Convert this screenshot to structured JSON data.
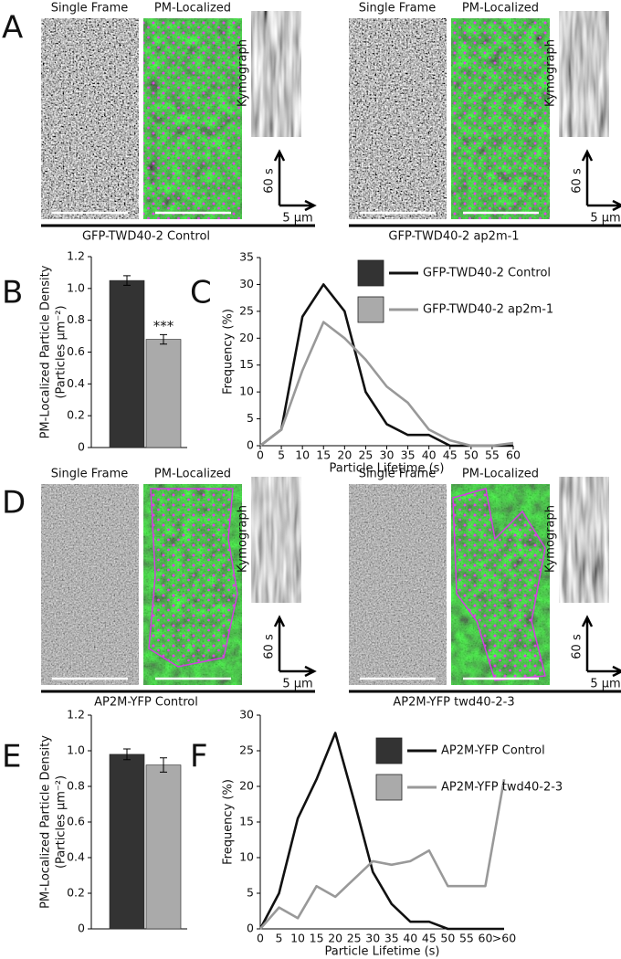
{
  "panel_labels": [
    "A",
    "B",
    "C",
    "D",
    "E",
    "F"
  ],
  "image_rows": [
    {
      "groups": [
        {
          "single_frame": "Single Frame",
          "pm_localized": "PM-Localized",
          "kymograph": "Kymograph",
          "time_scale": "60 s",
          "length_scale": "5 µm",
          "caption": "GFP-TWD40-2 Control"
        },
        {
          "single_frame": "Single Frame",
          "pm_localized": "PM-Localized",
          "kymograph": "Kymograph",
          "time_scale": "60 s",
          "length_scale": "5 µm",
          "caption": "GFP-TWD40-2 ap2m-1"
        }
      ]
    },
    {
      "groups": [
        {
          "single_frame": "Single Frame",
          "pm_localized": "PM-Localized",
          "kymograph": "Kymograph",
          "time_scale": "60 s",
          "length_scale": "5 µm",
          "caption": "AP2M-YFP Control"
        },
        {
          "single_frame": "Single Frame",
          "pm_localized": "PM-Localized",
          "kymograph": "Kymograph",
          "time_scale": "60 s",
          "length_scale": "5 µm",
          "caption": "AP2M-YFP twd40-2-3"
        }
      ]
    }
  ],
  "chart_data": [
    {
      "type": "bar",
      "ylabel": [
        "PM-Localized Particle Density",
        "(Particles µm⁻²)"
      ],
      "values": [
        1.05,
        0.68
      ],
      "errors": [
        0.03,
        0.03
      ],
      "colors": [
        "#333333",
        "#aaaaaa"
      ],
      "annotation": "***",
      "ylim": [
        0,
        1.2
      ],
      "yticks": [
        0,
        0.2,
        0.4,
        0.6,
        0.8,
        {
          "value": 1,
          "label": "1.0"
        },
        1.2
      ]
    },
    {
      "type": "line",
      "xlabel": "Particle Lifetime (s)",
      "ylabel": "Frequency (%)",
      "x": [
        0,
        5,
        10,
        15,
        20,
        25,
        30,
        35,
        40,
        45,
        50,
        55,
        60
      ],
      "series": [
        {
          "name": "GFP-TWD40-2 Control",
          "color": "#111111",
          "box": "#333333",
          "values": [
            0,
            3,
            24,
            30,
            25,
            10,
            4,
            2,
            2,
            0,
            0,
            0,
            0
          ]
        },
        {
          "name": "GFP-TWD40-2  ap2m-1",
          "color": "#999999",
          "box": "#aaaaaa",
          "values": [
            0,
            3,
            14,
            23,
            20,
            16,
            11,
            8,
            3,
            1,
            0,
            0,
            0.5
          ]
        }
      ],
      "xlim": [
        0,
        60
      ],
      "xticks": [
        0,
        5,
        10,
        15,
        20,
        25,
        30,
        35,
        40,
        45,
        50,
        55,
        60
      ],
      "ylim": [
        0,
        35
      ],
      "yticks": [
        0,
        5,
        10,
        15,
        20,
        25,
        30,
        35
      ]
    },
    {
      "type": "bar",
      "ylabel": [
        "PM-Localized Particle Density",
        "(Particles µm⁻²)"
      ],
      "values": [
        0.98,
        0.92
      ],
      "errors": [
        0.03,
        0.04
      ],
      "colors": [
        "#333333",
        "#aaaaaa"
      ],
      "ylim": [
        0,
        1.2
      ],
      "yticks": [
        0,
        0.2,
        0.4,
        0.6,
        0.8,
        {
          "value": 1,
          "label": "1.0"
        },
        1.2
      ]
    },
    {
      "type": "line",
      "xlabel": "Particle Lifetime (s)",
      "ylabel": "Frequency (%)",
      "categories": [
        "0",
        "5",
        "10",
        "15",
        "20",
        "25",
        "30",
        "35",
        "40",
        "45",
        "50",
        "55",
        "60",
        ">60"
      ],
      "series": [
        {
          "name": "AP2M-YFP Control",
          "color": "#111111",
          "box": "#333333",
          "values": [
            0,
            5,
            15.5,
            21,
            27.5,
            18,
            8,
            3.5,
            1,
            1,
            0,
            0,
            0,
            0
          ]
        },
        {
          "name": "AP2M-YFP twd40-2-3",
          "color": "#999999",
          "box": "#aaaaaa",
          "values": [
            0,
            3,
            1.5,
            6,
            4.5,
            7,
            9.5,
            9,
            9.5,
            11,
            6,
            6,
            6,
            21
          ]
        }
      ],
      "ylim": [
        0,
        30
      ],
      "yticks": [
        0,
        5,
        10,
        15,
        20,
        25,
        30
      ]
    }
  ]
}
